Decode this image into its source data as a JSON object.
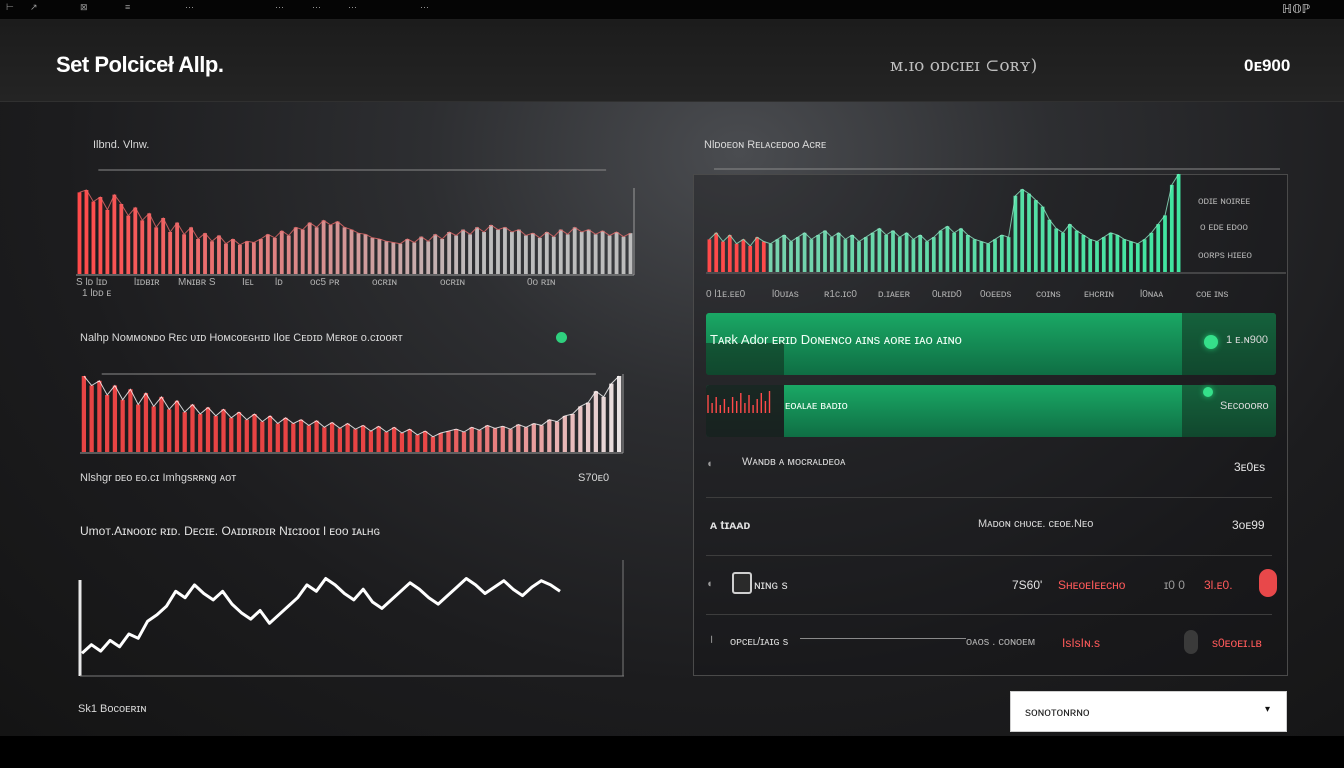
{
  "topbar": {
    "glyphs": [
      "⊢",
      "↗",
      "⊠",
      "≡",
      "⋯",
      "⋯",
      "⋯",
      "⋯",
      "⋯"
    ],
    "right_text": "ℍ𝕆ℙ"
  },
  "header": {
    "title": "Set Polciceł Allp.",
    "status_text": "ᴍ.ɪᴏ ᴏᴅᴄɪᴇɪ ⊂ᴏʀʏ)",
    "value": "0ᴇ900"
  },
  "left": {
    "chart1": {
      "title": "Ilbnd. Vlnw.",
      "tick_labels": [
        "S  lᴅ  lɪᴅ",
        "lɪᴅʙɪʀ",
        "Mɴɪʙʀ  S",
        "Iᴇʟ",
        "lᴅ",
        "ᴏᴄ5  ᴘʀ",
        "ᴏᴄʀɪɴ",
        "ᴏᴄʀɪɴ",
        "0ᴏ ʀɪɴ"
      ],
      "subtick": "1  lᴅᴅ ᴇ"
    },
    "chart2": {
      "title": "Nalhp Nᴏᴍᴍᴏɴᴅᴏ  Rᴇᴄ ᴜɪᴅ  Hᴏᴍᴄᴏᴇɢʜɪᴅ  Ilᴏᴇ Cᴇᴅɪᴅ  Mᴇʀᴏᴇ ᴏ.ᴄɪᴏᴏʀᴛ"
    },
    "chart3": {
      "title": "Nlshgr ᴅᴇᴏ ᴇᴏ.ᴄɪ  Imhgsʀʀɴg ᴀᴏᴛ",
      "value": "S70ᴇ0",
      "subtitle": "Umᴏᴛ.Aɪɴᴏᴏɪᴄ ʀɪᴅ. Dᴇᴄɪᴇ. Oᴀɪᴅɪʀᴅɪʀ Nɪᴄɪᴏᴏɪ l  ᴇᴏᴏ  ɪᴀʟʜɢ"
    },
    "footer_label": "Sk1  Bᴏᴄᴏᴇʀɪɴ"
  },
  "right": {
    "chart": {
      "title": "Nlᴅᴏᴇᴏɴ  Rᴇʟᴀᴄᴇᴅᴏᴏ  Acʀᴇ",
      "legend": [
        "ᴏᴅɪᴇ  ɴᴏɪʀᴇᴇ",
        "ᴏ ᴇᴅᴇ ᴇᴅᴏᴏ",
        "ᴏᴏʀᴘs  ʜɪᴇᴇᴏ"
      ],
      "tick_labels": [
        "0  l1ᴇ.ᴇᴇ0",
        "l0ᴜɪᴀs",
        "ʀ1ᴄ.ɪᴄ0",
        "ᴅ.ɪᴀᴇᴇʀ",
        "0ʟʀɪᴅ0",
        "0ᴏᴇᴇᴅs",
        "ᴄᴏɪɴs",
        "ᴇʜᴄʀɪɴ",
        "l0ɴᴀᴀ",
        "ᴄᴏᴇ  ɪɴs"
      ]
    },
    "row1": {
      "label": "Tᴀʀk Adᴏr ᴇʀɪᴅ  Dᴏɴᴇɴᴄᴏ  ᴀɪɴs  ᴀᴏʀᴇ ɪᴀᴏ  ᴀɪɴᴏ",
      "value": "1  ᴇ.ɴ900"
    },
    "row2": {
      "label": "ᴇᴏᴀʟᴀᴇ ʙᴀᴅɪᴏ",
      "value": "Sᴇᴄᴏᴏᴏʀᴏ"
    },
    "row3": {
      "label": "Wᴀɴᴅʙ  ᴀ ᴍᴏᴄʀᴀʟᴅᴇᴏᴀ",
      "value": "3ᴇ0ᴇs"
    },
    "row4": {
      "label": "ᴀ\ttɪᴀᴀᴅ",
      "middle": "Mᴀᴅᴏɴ ᴄʜᴜᴄᴇ.  ᴄᴇᴏᴇ.Nᴇᴏ",
      "value": "3ᴏᴇ99"
    },
    "row5": {
      "label": "ɴɪɴɢ s",
      "a": "7S60'",
      "b": "SʜᴇᴏᴇIᴇᴇᴄʜᴏ",
      "c": "ɪ0 0",
      "d": "3l.ᴇ0."
    },
    "row6": {
      "label": "ᴏᴘᴄᴇʟ/ɪᴀɪɢ s",
      "middle": "ᴏᴀᴏs . ᴄᴏɴᴏᴇᴍ",
      "red": "IsIsIɴ.s",
      "value": "s0ᴇᴏᴇɪ.ʟʙ"
    }
  },
  "select": {
    "value": "sᴏɴᴏᴛᴏɴʀɴᴏ",
    "chevron": "▾"
  },
  "colors": {
    "accent_green": "#1aa865",
    "alert_red": "#ff5a5a",
    "bg": "#1c1c1e"
  },
  "chart_data": [
    {
      "type": "bar",
      "values": [
        70,
        72,
        62,
        66,
        55,
        68,
        60,
        50,
        57,
        46,
        52,
        40,
        48,
        36,
        44,
        34,
        40,
        30,
        35,
        28,
        33,
        26,
        30,
        25,
        28,
        27,
        30,
        34,
        31,
        37,
        33,
        40,
        38,
        44,
        40,
        46,
        42,
        45,
        40,
        38,
        35,
        34,
        31,
        30,
        28,
        27,
        26,
        30,
        27,
        32,
        28,
        34,
        30,
        36,
        33,
        38,
        34,
        40,
        36,
        42,
        38,
        40,
        36,
        38,
        33,
        35,
        31,
        36,
        32,
        38,
        34,
        40,
        36,
        38,
        34,
        37,
        33,
        36,
        32,
        35
      ]
    },
    {
      "type": "bar",
      "values": [
        80,
        70,
        75,
        60,
        70,
        55,
        66,
        50,
        62,
        48,
        58,
        45,
        54,
        42,
        50,
        40,
        47,
        38,
        45,
        36,
        42,
        34,
        40,
        32,
        38,
        30,
        36,
        30,
        34,
        28,
        33,
        26,
        31,
        25,
        30,
        24,
        28,
        22,
        27,
        21,
        26,
        20,
        24,
        18,
        22,
        16,
        20,
        22,
        24,
        21,
        26,
        23,
        28,
        25,
        27,
        24,
        29,
        26,
        30,
        28,
        34,
        32,
        38,
        40,
        48,
        52,
        64,
        58,
        72,
        80
      ]
    },
    {
      "type": "line",
      "values": [
        12,
        20,
        14,
        24,
        18,
        30,
        26,
        42,
        48,
        56,
        70,
        64,
        76,
        68,
        62,
        70,
        58,
        50,
        44,
        52,
        40,
        48,
        56,
        64,
        76,
        70,
        82,
        76,
        68,
        62,
        72,
        60,
        54,
        62,
        70,
        78,
        72,
        64,
        58,
        66,
        74,
        82,
        76,
        68,
        74,
        80,
        72,
        66,
        74,
        80,
        76,
        70
      ]
    },
    {
      "type": "bar",
      "values": [
        30,
        36,
        28,
        34,
        26,
        30,
        24,
        32,
        28,
        26,
        30,
        34,
        28,
        32,
        36,
        30,
        34,
        38,
        32,
        36,
        30,
        34,
        28,
        32,
        36,
        40,
        34,
        38,
        32,
        36,
        30,
        34,
        28,
        32,
        38,
        42,
        36,
        40,
        34,
        30,
        28,
        26,
        30,
        34,
        32,
        70,
        76,
        72,
        66,
        60,
        48,
        40,
        36,
        44,
        38,
        34,
        30,
        28,
        32,
        36,
        34,
        30,
        28,
        26,
        30,
        36,
        44,
        52,
        80,
        90
      ]
    }
  ]
}
